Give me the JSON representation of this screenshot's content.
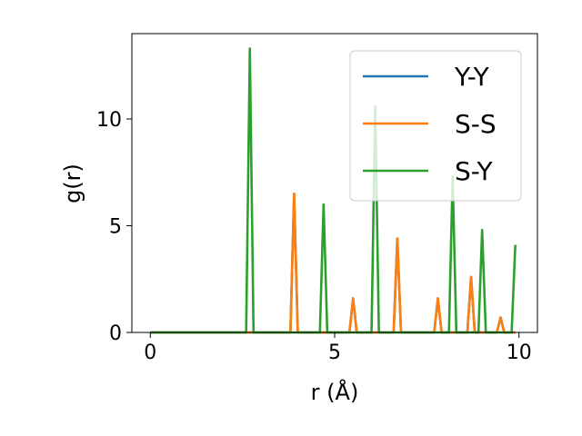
{
  "chart_data": {
    "type": "line",
    "title": "",
    "xlabel": "r (Å)",
    "ylabel": "g(r)",
    "xlim": [
      -0.5,
      10.5
    ],
    "ylim": [
      0,
      14
    ],
    "xticks": [
      0,
      5,
      10
    ],
    "xtick_labels": [
      "0",
      "5",
      "10"
    ],
    "yticks": [
      0,
      5,
      10
    ],
    "ytick_labels": [
      "0",
      "5",
      "10"
    ],
    "grid": false,
    "legend_position": "top-right",
    "series": [
      {
        "name": "Y-Y",
        "color": "#1f77b4",
        "x": [
          0,
          3.8,
          3.9,
          4.0,
          5.4,
          5.5,
          5.6,
          6.6,
          6.7,
          6.8,
          7.7,
          7.8,
          7.9,
          8.6,
          8.7,
          8.8,
          9.4,
          9.5,
          9.6,
          9.9
        ],
        "y": [
          0,
          0,
          6.5,
          0,
          0,
          1.6,
          0,
          0,
          4.4,
          0,
          0,
          1.6,
          0,
          0,
          2.6,
          0,
          0,
          0.7,
          0,
          0
        ]
      },
      {
        "name": "S-S",
        "color": "#ff7f0e",
        "x": [
          0,
          3.8,
          3.9,
          4.0,
          5.4,
          5.5,
          5.6,
          6.6,
          6.7,
          6.8,
          7.7,
          7.8,
          7.9,
          8.6,
          8.7,
          8.8,
          9.4,
          9.5,
          9.6,
          9.9
        ],
        "y": [
          0,
          0,
          6.5,
          0,
          0,
          1.6,
          0,
          0,
          4.4,
          0,
          0,
          1.6,
          0,
          0,
          2.6,
          0,
          0,
          0.7,
          0,
          0
        ]
      },
      {
        "name": "S-Y",
        "color": "#2ca02c",
        "x": [
          0,
          2.6,
          2.7,
          2.8,
          4.6,
          4.7,
          4.8,
          6.0,
          6.1,
          6.2,
          8.1,
          8.2,
          8.3,
          8.9,
          9.0,
          9.1,
          9.8,
          9.9
        ],
        "y": [
          0,
          0,
          13.3,
          0,
          0,
          6.0,
          0,
          0,
          10.6,
          0,
          0,
          7.3,
          0,
          0,
          4.8,
          0,
          0,
          4.1
        ]
      }
    ]
  }
}
